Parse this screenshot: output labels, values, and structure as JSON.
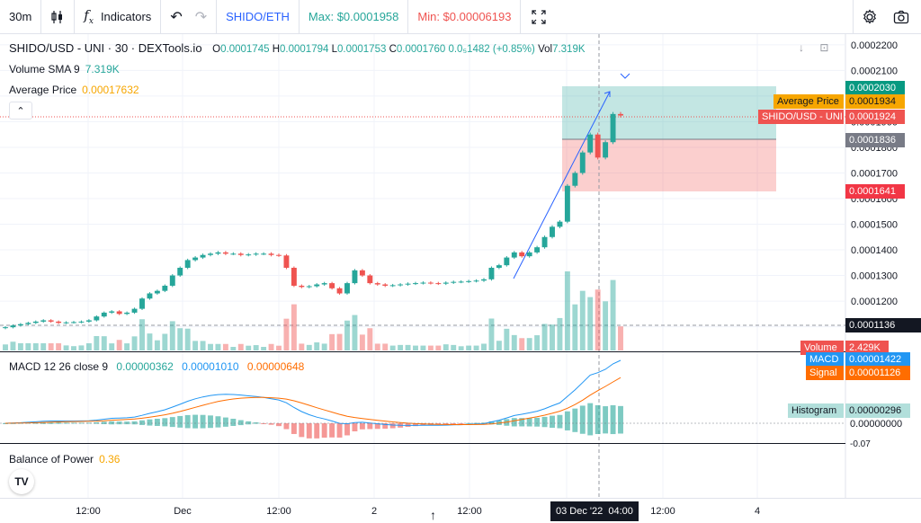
{
  "toolbar": {
    "interval": "30m",
    "indicators_label": "Indicators",
    "pair_label": "SHIDO/ETH",
    "max_label": "Max: $0.0001958",
    "min_label": "Min: $0.00006193"
  },
  "legend": {
    "symbol": "SHIDO/USD - UNI · 30 · DEXTools.io",
    "open_k": "O",
    "open_v": "0.0001745",
    "high_k": "H",
    "high_v": "0.0001794",
    "low_k": "L",
    "low_v": "0.0001753",
    "close_k": "C",
    "close_v": "0.0001760",
    "change": "0.0₅1482 (+0.85%)",
    "vol_k": "Vol",
    "vol_v": "7.319K",
    "volume_sma_label": "Volume SMA 9",
    "volume_sma_value": "7.319K",
    "avg_price_label": "Average Price",
    "avg_price_value": "0.00017632",
    "macd_label": "MACD 12 26 close 9",
    "macd_v1": "0.00000362",
    "macd_v2": "0.00001010",
    "macd_v3": "0.00000648",
    "bop_label": "Balance of Power",
    "bop_value": "0.36"
  },
  "price_axis": {
    "ticks": [
      "0.0002200",
      "0.0002100",
      "0.0002000",
      "0.0001900",
      "0.0001800",
      "0.0001700",
      "0.0001600",
      "0.0001500",
      "0.0001400",
      "0.0001300",
      "0.0001200",
      "0.0001100"
    ],
    "tags": {
      "target": "0.0002030",
      "avg_label": "Average Price",
      "avg_value": "0.0001934",
      "symbol_label": "SHIDO/USD - UNI",
      "symbol_value": "0.0001924",
      "entry": "0.0001836",
      "stop": "0.0001641",
      "crosshair": "0.0001136",
      "volume_label": "Volume",
      "volume_value": "2.429K",
      "macd_label": "MACD",
      "macd_value": "0.00001422",
      "signal_label": "Signal",
      "signal_value": "0.00001126",
      "hist_label": "Histogram",
      "hist_value": "0.00000296",
      "macd_zero": "0.00000000",
      "bop_tick": "-0.07"
    }
  },
  "time_axis": {
    "labels": [
      "12:00",
      "Dec",
      "12:00",
      "2",
      "12:00",
      "12:00",
      "4"
    ],
    "active_label": "03 Dec '22",
    "active_time": "04:00"
  },
  "colors": {
    "up": "#26a69a",
    "down": "#ef5350",
    "avg": "#f7a600",
    "macd": "#2196f3",
    "signal": "#ff6d00",
    "brand": "#2962ff"
  },
  "chart_data": {
    "type": "candlestick",
    "title": "SHIDO/USD - UNI · 30 · DEXTools.io",
    "ylim": [
      0.000106,
      0.000221
    ],
    "x_labels": [
      "12:00",
      "Dec",
      "12:00",
      "2",
      "12:00",
      "03 Dec '22 04:00",
      "12:00",
      "4"
    ],
    "closes": [
      0.0001098,
      0.0001105,
      0.000111,
      0.0001115,
      0.000112,
      0.0001125,
      0.000112,
      0.0001115,
      0.0001117,
      0.0001118,
      0.000112,
      0.0001125,
      0.000114,
      0.0001155,
      0.000116,
      0.000115,
      0.0001155,
      0.000117,
      0.000121,
      0.000123,
      0.000124,
      0.000126,
      0.00013,
      0.000133,
      0.000136,
      0.000137,
      0.000138,
      0.0001385,
      0.000139,
      0.0001385,
      0.0001385,
      0.000138,
      0.0001382,
      0.0001385,
      0.0001385,
      0.000138,
      0.0001378,
      0.000133,
      0.000126,
      0.0001255,
      0.0001258,
      0.0001265,
      0.000127,
      0.000125,
      0.000123,
      0.000127,
      0.000132,
      0.00013,
      0.000127,
      0.0001265,
      0.000126,
      0.0001262,
      0.0001265,
      0.0001268,
      0.000127,
      0.0001272,
      0.000127,
      0.0001268,
      0.0001272,
      0.0001275,
      0.0001276,
      0.0001278,
      0.000128,
      0.0001285,
      0.000133,
      0.000134,
      0.000137,
      0.000139,
      0.0001375,
      0.000139,
      0.000141,
      0.000145,
      0.000149,
      0.000151,
      0.000165,
      0.00017,
      0.000178,
      0.000185,
      0.000176,
      0.000182,
      0.000193,
      0.0001924
    ],
    "volume": {
      "label": "Volume",
      "last": "2.429K"
    },
    "macd": {
      "macd_last": 1.422e-05,
      "signal_last": 1.126e-05,
      "histogram_last": 2.96e-06
    },
    "position": {
      "target": 0.000203,
      "entry": 0.0001836,
      "stop": 0.0001641
    },
    "average_price": 0.0001934,
    "last_price": 0.0001924
  }
}
